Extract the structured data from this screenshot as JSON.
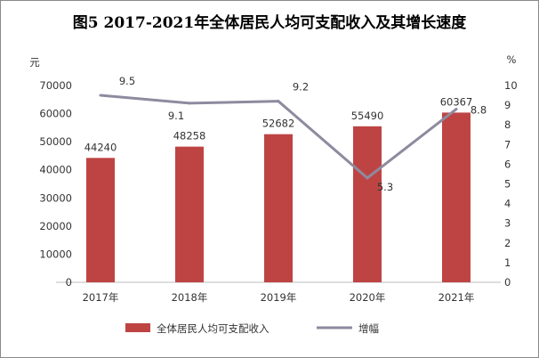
{
  "chart_data": {
    "type": "bar+line",
    "title": "图5  2017-2021年全体居民人均可支配收入及其增长速度",
    "categories": [
      "2017年",
      "2018年",
      "2019年",
      "2020年",
      "2021年"
    ],
    "series": [
      {
        "name": "全体居民人均可支配收入",
        "type": "bar",
        "axis": "left",
        "values": [
          44240,
          48258,
          52682,
          55490,
          60367
        ],
        "color": "#be4444"
      },
      {
        "name": "增幅",
        "type": "line",
        "axis": "right",
        "values": [
          9.5,
          9.1,
          9.2,
          5.3,
          8.8
        ],
        "color": "#8e8a9f"
      }
    ],
    "left_axis": {
      "unit": "元",
      "ylim": [
        0,
        70000
      ],
      "ticks": [
        0,
        10000,
        20000,
        30000,
        40000,
        50000,
        60000,
        70000
      ]
    },
    "right_axis": {
      "unit": "%",
      "ylim": [
        0,
        10
      ],
      "ticks": [
        0,
        1,
        2,
        3,
        4,
        5,
        6,
        7,
        8,
        9,
        10
      ]
    },
    "grid": false,
    "legend": "bottom"
  }
}
